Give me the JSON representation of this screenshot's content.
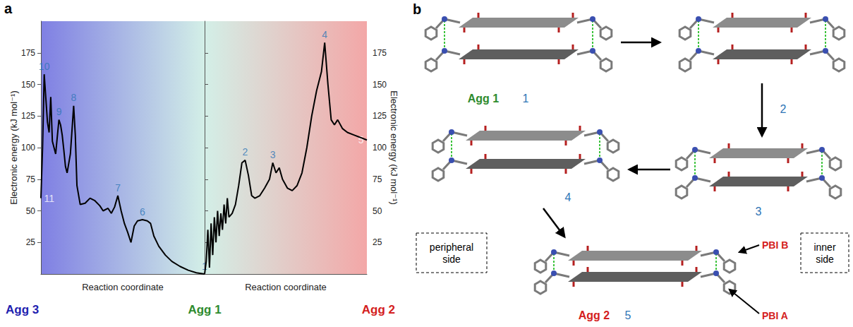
{
  "chart_data": [
    {
      "type": "line",
      "x_start_label": "Agg 3",
      "xlabel": "Reaction coordinate",
      "ylabel": "Electronic energy (kJ mol⁻¹)",
      "x": [
        0,
        1,
        2,
        4,
        5,
        6,
        7,
        9,
        11,
        12,
        13,
        14,
        15,
        16,
        18,
        20,
        21,
        22,
        24,
        27,
        30,
        33,
        36,
        38,
        41,
        43,
        45,
        47,
        49,
        51,
        53,
        55,
        57,
        59,
        62,
        65,
        67,
        69,
        72,
        76,
        80,
        85,
        90,
        95,
        100
      ],
      "values": [
        60,
        100,
        158,
        120,
        112,
        140,
        105,
        95,
        122,
        118,
        110,
        98,
        85,
        80,
        95,
        133,
        110,
        70,
        55,
        56,
        60,
        58,
        54,
        50,
        52,
        48,
        53,
        62,
        50,
        40,
        33,
        25,
        38,
        42,
        43,
        42,
        40,
        30,
        22,
        15,
        10,
        6,
        3,
        1,
        0
      ],
      "color": "#000000",
      "xlim": [
        0,
        100
      ],
      "ylim": [
        0,
        200
      ],
      "yticks": [
        25,
        50,
        75,
        100,
        125,
        150,
        175
      ],
      "tick_labels": "y",
      "annotations": [
        {
          "text": "10",
          "x": 2,
          "y": 158,
          "color": "#2e75b6"
        },
        {
          "text": "9",
          "x": 11,
          "y": 122,
          "color": "#2e75b6"
        },
        {
          "text": "8",
          "x": 20,
          "y": 133,
          "color": "#2e75b6"
        },
        {
          "text": "7",
          "x": 47,
          "y": 62,
          "color": "#2e75b6"
        },
        {
          "text": "6",
          "x": 62,
          "y": 43,
          "color": "#2e75b6"
        },
        {
          "text": "11",
          "x": 0,
          "y": 60,
          "color": "#ffffff"
        }
      ]
    },
    {
      "type": "line",
      "x_start_label": "Agg 1",
      "x_end_label": "Agg 2",
      "xlabel": "Reaction coordinate",
      "ylabel": "Electronic energy (kJ mol⁻¹)",
      "x": [
        0,
        1,
        2,
        3,
        4,
        5,
        6,
        7,
        8,
        9,
        10,
        11,
        12,
        13,
        14,
        15,
        17,
        19,
        21,
        23,
        25,
        27,
        29,
        31,
        34,
        37,
        40,
        42,
        44,
        46,
        48,
        51,
        54,
        57,
        60,
        63,
        66,
        69,
        72,
        74,
        76,
        78,
        80,
        82,
        85,
        88,
        92,
        96,
        100
      ],
      "values": [
        0,
        10,
        35,
        5,
        40,
        15,
        45,
        25,
        50,
        30,
        48,
        35,
        55,
        40,
        60,
        45,
        48,
        55,
        70,
        88,
        90,
        78,
        62,
        60,
        62,
        68,
        75,
        88,
        80,
        84,
        75,
        68,
        66,
        70,
        80,
        100,
        125,
        145,
        160,
        183,
        150,
        122,
        118,
        122,
        115,
        112,
        110,
        108,
        106
      ],
      "color": "#000000",
      "xlim": [
        0,
        100
      ],
      "ylim": [
        0,
        200
      ],
      "yticks": [
        25,
        50,
        75,
        100,
        125,
        150,
        175
      ],
      "tick_labels": "y",
      "annotations": [
        {
          "text": "1",
          "x": 0,
          "y": 0,
          "color": "#2e75b6"
        },
        {
          "text": "2",
          "x": 25,
          "y": 90,
          "color": "#2e75b6"
        },
        {
          "text": "3",
          "x": 42,
          "y": 88,
          "color": "#2e75b6"
        },
        {
          "text": "4",
          "x": 74,
          "y": 183,
          "color": "#2e75b6"
        },
        {
          "text": "5",
          "x": 100,
          "y": 106,
          "color": "#ffffff"
        }
      ]
    }
  ],
  "panel_a_letter": "a",
  "diagram": {
    "letter": "b",
    "nodes": [
      {
        "id": "1",
        "label": "1",
        "name": "Agg 1"
      },
      {
        "id": "2",
        "label": "2"
      },
      {
        "id": "3",
        "label": "3"
      },
      {
        "id": "4",
        "label": "4"
      },
      {
        "id": "5",
        "label": "5",
        "name": "Agg 2"
      }
    ],
    "edges": [
      [
        "1",
        "2"
      ],
      [
        "2",
        "3"
      ],
      [
        "3",
        "4"
      ],
      [
        "4",
        "5"
      ]
    ],
    "callouts": [
      "PBI B",
      "PBI A"
    ],
    "regions": [
      "peripheral side",
      "inner side"
    ]
  }
}
